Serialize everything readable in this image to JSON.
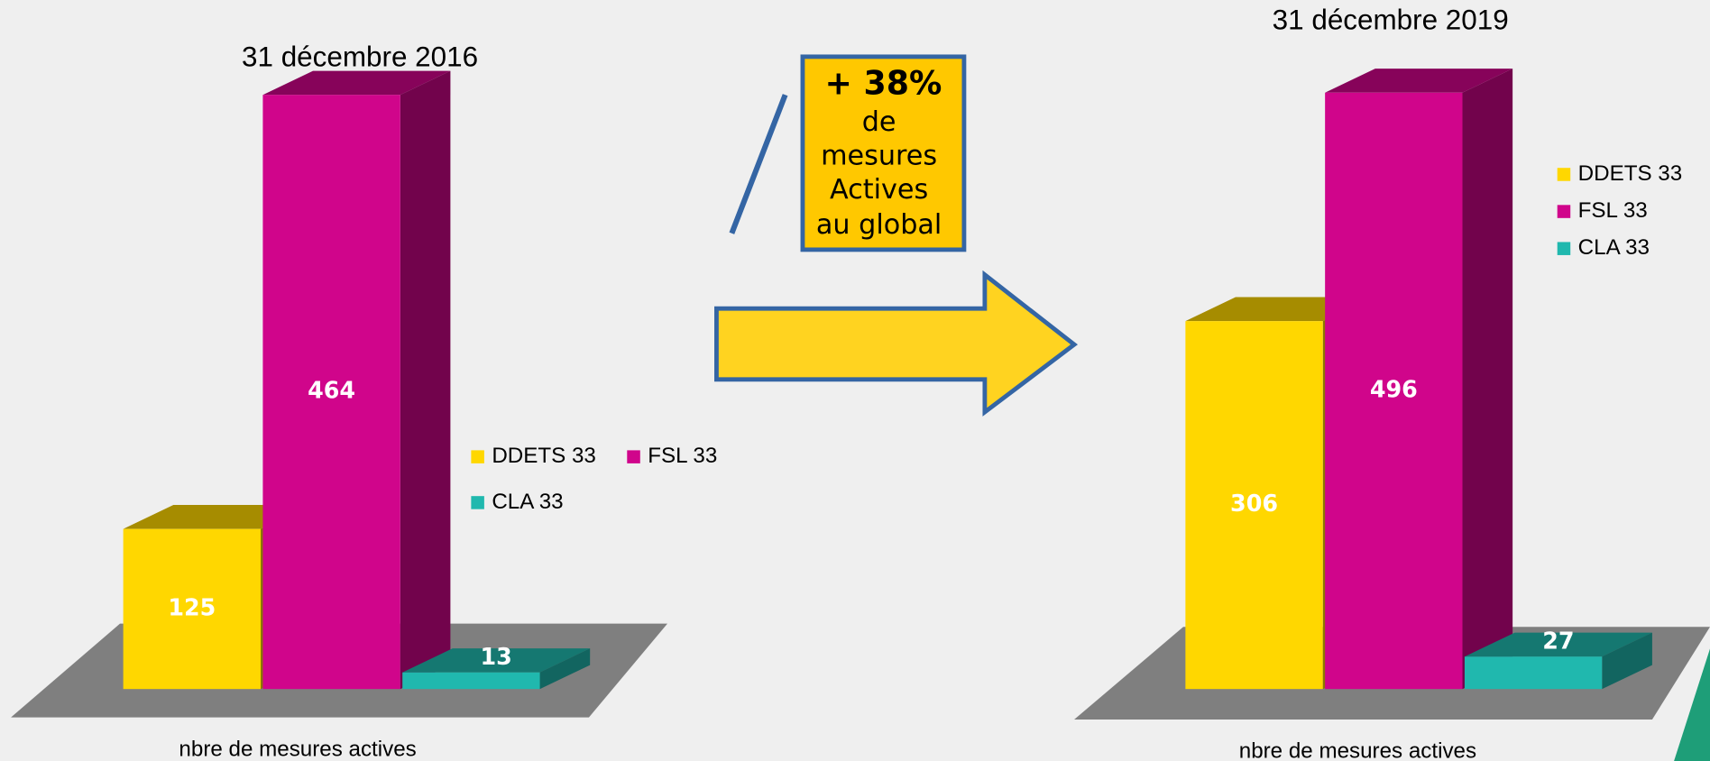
{
  "chart_data": [
    {
      "type": "bar3d",
      "title": "31 décembre 2016",
      "xlabel": "nbre de mesures actives",
      "series": [
        {
          "name": "DDETS 33",
          "color": "#FFD700",
          "values": [
            125
          ]
        },
        {
          "name": "FSL 33",
          "color": "#D0058B",
          "values": [
            464
          ]
        },
        {
          "name": "CLA 33",
          "color": "#20B8AE",
          "values": [
            13
          ]
        }
      ]
    },
    {
      "type": "bar3d",
      "title": "31 décembre 2019",
      "xlabel": "nbre de mesures actives",
      "series": [
        {
          "name": "DDETS 33",
          "color": "#FFD700",
          "values": [
            306
          ]
        },
        {
          "name": "FSL 33",
          "color": "#D0058B",
          "values": [
            496
          ]
        },
        {
          "name": "CLA 33",
          "color": "#20B8AE",
          "values": [
            27
          ]
        }
      ]
    }
  ],
  "annotation": {
    "headline": "+ 38%",
    "lines": [
      "de",
      "mesures",
      "Actives",
      "au global"
    ]
  }
}
